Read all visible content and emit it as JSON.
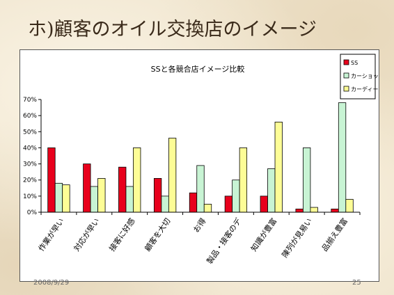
{
  "slide": {
    "title": "ホ)顧客のオイル交換店のイメージ",
    "date": "2008/9/29",
    "page": "25"
  },
  "chart_data": {
    "type": "bar",
    "title": "SSと各競合店イメージ比較",
    "xlabel": "",
    "ylabel": "",
    "ylim": [
      0,
      70
    ],
    "yticks": [
      "0%",
      "10%",
      "20%",
      "30%",
      "40%",
      "50%",
      "60%",
      "70%"
    ],
    "categories": [
      "作業が早い",
      "対応が早い",
      "接客に好感",
      "顧客を大切",
      "お得",
      "製品・接客のデ",
      "知識が豊富",
      "陳列が見易い",
      "品揃え豊富"
    ],
    "series": [
      {
        "name": "SS",
        "color": "#e8001c",
        "values": [
          40,
          30,
          28,
          21,
          12,
          10,
          10,
          2,
          2
        ]
      },
      {
        "name": "カーショップ",
        "color": "#c8f4d4",
        "values": [
          18,
          16,
          16,
          10,
          29,
          20,
          27,
          40,
          68
        ]
      },
      {
        "name": "カーディーラ",
        "color": "#fdfd96",
        "values": [
          17,
          21,
          40,
          46,
          5,
          40,
          56,
          3,
          8
        ]
      }
    ],
    "legend": "top-right",
    "grid": false
  }
}
